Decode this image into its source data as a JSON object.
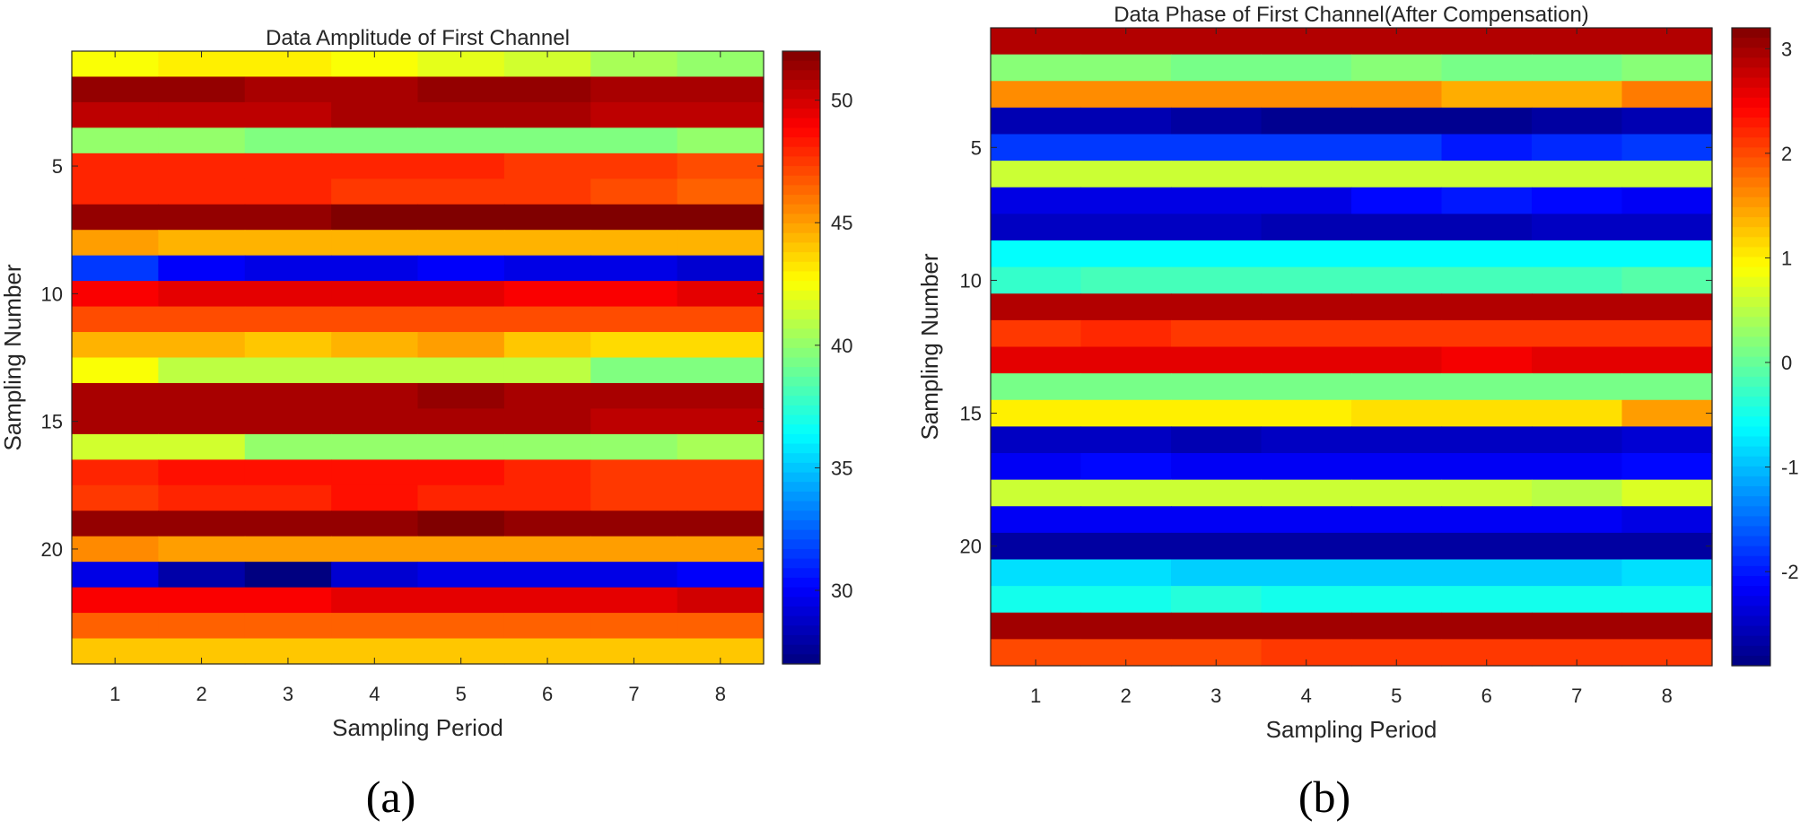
{
  "chart_data": [
    {
      "type": "heatmap",
      "caption": "(a)",
      "title": "Data Amplitude of First Channel",
      "xlabel": "Sampling Period",
      "ylabel": "Sampling Number",
      "colormap": "jet",
      "clim": [
        27,
        52
      ],
      "x_categories": [
        1,
        2,
        3,
        4,
        5,
        6,
        7,
        8
      ],
      "x_ticks": [
        "1",
        "2",
        "3",
        "4",
        "5",
        "6",
        "7",
        "8"
      ],
      "y_range": [
        1,
        24
      ],
      "y_ticks": [
        5,
        10,
        15,
        20
      ],
      "colorbar_ticks": [
        30,
        35,
        40,
        45,
        50
      ],
      "values": [
        [
          42.5,
          43,
          43,
          42.5,
          42,
          41.5,
          40.5,
          40
        ],
        [
          51.5,
          51.5,
          51,
          51,
          51.5,
          51.5,
          51,
          51
        ],
        [
          50.5,
          50.5,
          50.5,
          51,
          51,
          51,
          50.5,
          50.5
        ],
        [
          40,
          40,
          39.5,
          39.5,
          39.5,
          39.5,
          39.5,
          40
        ],
        [
          48,
          48,
          48,
          48,
          48,
          47.5,
          47.5,
          47
        ],
        [
          48,
          48,
          48,
          47.5,
          47.5,
          47.5,
          47,
          46.5
        ],
        [
          51.5,
          51.5,
          51.5,
          52,
          52,
          52,
          52,
          52
        ],
        [
          45,
          44.5,
          44.5,
          44.5,
          44.5,
          44.5,
          44.5,
          44.5
        ],
        [
          31.5,
          30,
          29.5,
          29.5,
          30,
          29.5,
          29.5,
          29
        ],
        [
          49,
          49.5,
          49.5,
          49.5,
          49.5,
          49,
          49,
          49.5
        ],
        [
          47,
          47,
          47,
          47,
          47,
          47,
          47,
          47
        ],
        [
          44.5,
          44.5,
          44,
          44.5,
          45,
          44,
          43.5,
          43.5
        ],
        [
          42.5,
          41,
          41,
          41,
          41,
          41,
          39.5,
          39.5
        ],
        [
          51,
          51,
          51,
          51,
          51.5,
          51,
          51,
          51
        ],
        [
          51,
          51,
          51,
          51,
          51,
          51,
          50.5,
          50.5
        ],
        [
          41.5,
          41.5,
          40,
          40,
          40,
          40,
          40,
          40.5
        ],
        [
          48,
          48.5,
          48.5,
          48.5,
          48.5,
          48,
          47.5,
          47.5
        ],
        [
          47.5,
          48,
          48,
          48.5,
          48,
          48,
          47.5,
          47.5
        ],
        [
          51.5,
          51.5,
          51.5,
          51.5,
          52,
          51.5,
          51.5,
          51.5
        ],
        [
          45.5,
          45,
          45,
          45,
          45,
          45,
          45,
          45
        ],
        [
          29.5,
          28,
          27,
          29,
          29.5,
          29.5,
          29.5,
          30
        ],
        [
          49,
          49,
          49,
          49.5,
          49.5,
          49.5,
          49.5,
          50
        ],
        [
          46.5,
          46.5,
          46.5,
          46.5,
          46.5,
          46.5,
          46.5,
          46.5
        ],
        [
          44,
          44,
          44,
          44,
          44,
          44,
          44,
          44
        ]
      ]
    },
    {
      "type": "heatmap",
      "caption": "(b)",
      "title": "Data Phase of First Channel(After Compensation)",
      "xlabel": "Sampling Period",
      "ylabel": "Sampling Number",
      "colormap": "jet",
      "clim": [
        -2.9,
        3.2
      ],
      "x_categories": [
        1,
        2,
        3,
        4,
        5,
        6,
        7,
        8
      ],
      "x_ticks": [
        "1",
        "2",
        "3",
        "4",
        "5",
        "6",
        "7",
        "8"
      ],
      "y_range": [
        1,
        24
      ],
      "y_ticks": [
        5,
        10,
        15,
        20
      ],
      "colorbar_ticks": [
        3,
        2,
        1,
        0,
        -1,
        -2
      ],
      "colorbar_tick_labels": [
        "3",
        "2",
        "1",
        "0",
        "-1",
        "-2"
      ],
      "values": [
        [
          2.9,
          2.9,
          2.9,
          2.9,
          2.9,
          2.9,
          2.9,
          2.9
        ],
        [
          0.2,
          0.2,
          0.1,
          0.1,
          0.2,
          0.1,
          0.1,
          0.2
        ],
        [
          1.6,
          1.6,
          1.6,
          1.6,
          1.6,
          1.4,
          1.4,
          1.7
        ],
        [
          -2.6,
          -2.6,
          -2.7,
          -2.8,
          -2.8,
          -2.8,
          -2.7,
          -2.6
        ],
        [
          -1.8,
          -1.8,
          -1.8,
          -1.8,
          -1.8,
          -2.0,
          -1.9,
          -1.8
        ],
        [
          0.6,
          0.6,
          0.6,
          0.6,
          0.6,
          0.6,
          0.6,
          0.6
        ],
        [
          -2.3,
          -2.3,
          -2.3,
          -2.3,
          -2.1,
          -2.0,
          -2.1,
          -2.2
        ],
        [
          -2.5,
          -2.5,
          -2.5,
          -2.6,
          -2.6,
          -2.6,
          -2.5,
          -2.5
        ],
        [
          -0.6,
          -0.6,
          -0.6,
          -0.6,
          -0.6,
          -0.6,
          -0.6,
          -0.6
        ],
        [
          -0.3,
          -0.2,
          -0.2,
          -0.2,
          -0.2,
          -0.2,
          -0.2,
          -0.1
        ],
        [
          2.9,
          2.9,
          2.9,
          2.9,
          2.9,
          2.9,
          2.9,
          2.9
        ],
        [
          2.1,
          2.2,
          2.1,
          2.1,
          2.1,
          2.1,
          2.1,
          2.1
        ],
        [
          2.6,
          2.6,
          2.6,
          2.6,
          2.6,
          2.5,
          2.6,
          2.6
        ],
        [
          0.1,
          0.1,
          0.1,
          0.1,
          0.1,
          0.1,
          0.1,
          0.1
        ],
        [
          1.0,
          1.0,
          1.0,
          1.0,
          1.1,
          1.1,
          1.1,
          1.5
        ],
        [
          -2.5,
          -2.5,
          -2.6,
          -2.5,
          -2.5,
          -2.5,
          -2.5,
          -2.4
        ],
        [
          -2.2,
          -2.1,
          -2.2,
          -2.2,
          -2.2,
          -2.2,
          -2.2,
          -2.1
        ],
        [
          0.6,
          0.6,
          0.6,
          0.6,
          0.6,
          0.6,
          0.5,
          0.7
        ],
        [
          -2.2,
          -2.2,
          -2.2,
          -2.2,
          -2.2,
          -2.2,
          -2.2,
          -2.3
        ],
        [
          -2.7,
          -2.7,
          -2.7,
          -2.7,
          -2.7,
          -2.7,
          -2.7,
          -2.7
        ],
        [
          -0.8,
          -0.8,
          -0.9,
          -0.9,
          -0.9,
          -0.9,
          -0.9,
          -0.8
        ],
        [
          -0.5,
          -0.5,
          -0.4,
          -0.5,
          -0.5,
          -0.5,
          -0.5,
          -0.5
        ],
        [
          3.0,
          3.0,
          3.0,
          3.0,
          3.0,
          3.0,
          3.0,
          3.0
        ],
        [
          2.0,
          2.0,
          2.0,
          2.1,
          2.1,
          2.1,
          2.1,
          2.1
        ]
      ]
    }
  ]
}
